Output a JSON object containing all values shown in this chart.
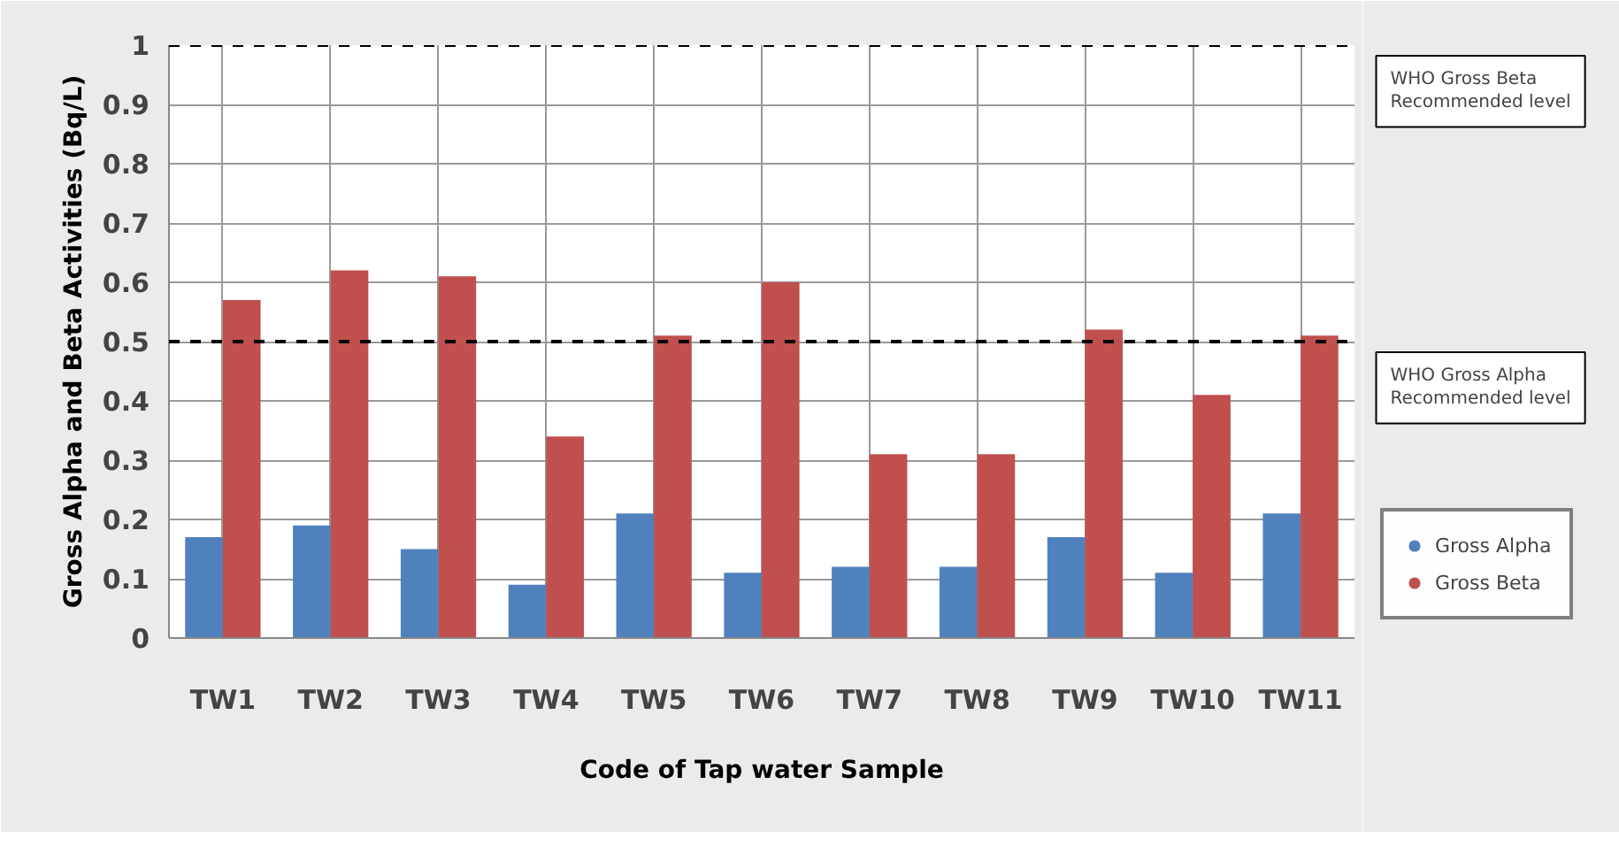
{
  "chart_data": {
    "type": "bar",
    "xlabel": "Code of Tap water Sample",
    "ylabel": "Gross Alpha and Beta Activities (Bq/L)",
    "categories": [
      "TW1",
      "TW2",
      "TW3",
      "TW4",
      "TW5",
      "TW6",
      "TW7",
      "TW8",
      "TW9",
      "TW10",
      "TW11"
    ],
    "series": [
      {
        "name": "Gross Alpha",
        "color": "#4f81bd",
        "values": [
          0.17,
          0.19,
          0.15,
          0.09,
          0.21,
          0.11,
          0.12,
          0.12,
          0.17,
          0.11,
          0.21
        ]
      },
      {
        "name": "Gross Beta",
        "color": "#c0504d",
        "values": [
          0.57,
          0.62,
          0.61,
          0.34,
          0.51,
          0.6,
          0.31,
          0.31,
          0.52,
          0.41,
          0.51
        ]
      }
    ],
    "ylim": [
      0,
      1
    ],
    "yticks": [
      0,
      0.1,
      0.2,
      0.3,
      0.4,
      0.5,
      0.6,
      0.7,
      0.8,
      0.9,
      1
    ],
    "ref_lines": [
      {
        "axis": "y",
        "value": 1,
        "label": "WHO Gross Beta Recommended level",
        "color": "#000000",
        "line_style": "dashed"
      },
      {
        "axis": "y",
        "value": 0.5,
        "label": "WHO Gross Alpha Recommended level",
        "color": "#000000",
        "line_style": "dashed"
      }
    ],
    "grid": true,
    "legend": "right"
  }
}
